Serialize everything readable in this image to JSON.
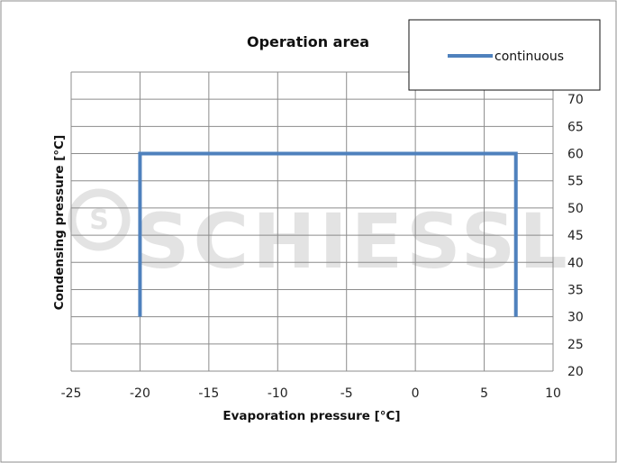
{
  "chart_data": {
    "type": "line",
    "title": "Operation area",
    "xlabel": "Evaporation pressure [°C]",
    "ylabel": "Condensing pressure [°C]",
    "xlim": [
      -25,
      10
    ],
    "ylim": [
      20,
      75
    ],
    "x_ticks": [
      -25,
      -20,
      -15,
      -10,
      -5,
      0,
      5,
      10
    ],
    "y_ticks": [
      20,
      25,
      30,
      35,
      40,
      45,
      50,
      55,
      60,
      65,
      70
    ],
    "y_axis_side": "right",
    "grid": true,
    "legend_position": "top-right",
    "series": [
      {
        "name": "continuous",
        "color": "#4f81bd",
        "x": [
          -20,
          -20,
          7.3,
          7.3
        ],
        "y": [
          30,
          60,
          60,
          30
        ]
      }
    ],
    "watermark": "SCHIESSL"
  }
}
